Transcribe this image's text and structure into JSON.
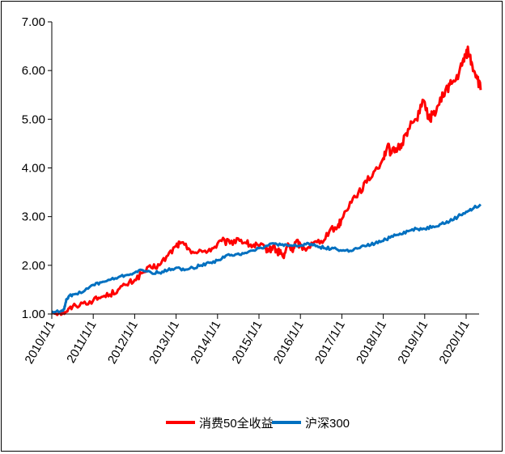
{
  "chart_data": {
    "type": "line",
    "title": "",
    "xlabel": "",
    "ylabel": "",
    "ylim": [
      1.0,
      7.0
    ],
    "yticks": [
      "1.00",
      "2.00",
      "3.00",
      "4.00",
      "5.00",
      "6.00",
      "7.00"
    ],
    "xticks": [
      "2010/1/1",
      "2011/1/1",
      "2012/1/1",
      "2013/1/1",
      "2014/1/1",
      "2015/1/1",
      "2016/1/1",
      "2017/1/1",
      "2018/1/1",
      "2019/1/1",
      "2020/1/1"
    ],
    "xrange": [
      2010.0,
      2020.35
    ],
    "grid": false,
    "legend_position": "bottom",
    "series": [
      {
        "name": "消费50全收益",
        "color": "#ff0000",
        "x": [
          2010.0,
          2010.2,
          2010.35,
          2010.5,
          2010.75,
          2011.0,
          2011.2,
          2011.4,
          2011.6,
          2011.8,
          2012.0,
          2012.2,
          2012.4,
          2012.6,
          2012.8,
          2013.0,
          2013.1,
          2013.3,
          2013.5,
          2013.7,
          2013.9,
          2014.1,
          2014.3,
          2014.5,
          2014.7,
          2014.85,
          2015.0,
          2015.15,
          2015.25,
          2015.35,
          2015.45,
          2015.5,
          2015.6,
          2015.7,
          2015.8,
          2015.9,
          2016.0,
          2016.1,
          2016.3,
          2016.5,
          2016.7,
          2016.9,
          2017.0,
          2017.2,
          2017.4,
          2017.6,
          2017.8,
          2018.0,
          2018.1,
          2018.2,
          2018.35,
          2018.45,
          2018.6,
          2018.8,
          2018.95,
          2019.1,
          2019.2,
          2019.35,
          2019.5,
          2019.6,
          2019.75,
          2019.9,
          2020.0,
          2020.05,
          2020.15,
          2020.25,
          2020.35
        ],
        "y": [
          1.05,
          1.02,
          1.05,
          1.15,
          1.22,
          1.28,
          1.35,
          1.4,
          1.5,
          1.6,
          1.7,
          1.85,
          1.95,
          2.0,
          2.2,
          2.4,
          2.45,
          2.35,
          2.25,
          2.3,
          2.35,
          2.5,
          2.45,
          2.55,
          2.45,
          2.4,
          2.4,
          2.35,
          2.3,
          2.4,
          2.25,
          2.3,
          2.15,
          2.45,
          2.3,
          2.5,
          2.4,
          2.35,
          2.45,
          2.5,
          2.7,
          2.8,
          2.95,
          3.3,
          3.5,
          3.7,
          3.95,
          4.2,
          4.45,
          4.3,
          4.4,
          4.5,
          4.8,
          5.0,
          5.4,
          5.0,
          5.1,
          5.3,
          5.6,
          5.7,
          5.8,
          6.1,
          6.35,
          6.4,
          6.1,
          5.9,
          5.6
        ]
      },
      {
        "name": "沪深300",
        "color": "#0070c0",
        "x": [
          2010.0,
          2010.2,
          2010.3,
          2010.35,
          2010.4,
          2010.5,
          2010.75,
          2011.0,
          2011.2,
          2011.4,
          2011.6,
          2011.8,
          2012.0,
          2012.2,
          2012.4,
          2012.6,
          2012.8,
          2013.0,
          2013.2,
          2013.4,
          2013.6,
          2013.8,
          2014.0,
          2014.2,
          2014.4,
          2014.6,
          2014.8,
          2015.0,
          2015.2,
          2015.4,
          2015.6,
          2015.8,
          2016.0,
          2016.2,
          2016.4,
          2016.6,
          2016.8,
          2017.0,
          2017.2,
          2017.4,
          2017.6,
          2017.8,
          2018.0,
          2018.2,
          2018.4,
          2018.6,
          2018.8,
          2019.0,
          2019.2,
          2019.4,
          2019.6,
          2019.8,
          2020.0,
          2020.15,
          2020.35
        ],
        "y": [
          1.05,
          1.05,
          1.1,
          1.3,
          1.35,
          1.4,
          1.45,
          1.6,
          1.65,
          1.7,
          1.75,
          1.8,
          1.85,
          1.9,
          1.85,
          1.85,
          1.9,
          1.95,
          1.9,
          1.95,
          2.0,
          2.05,
          2.1,
          2.2,
          2.2,
          2.25,
          2.3,
          2.35,
          2.4,
          2.45,
          2.4,
          2.4,
          2.4,
          2.45,
          2.4,
          2.35,
          2.35,
          2.3,
          2.3,
          2.35,
          2.4,
          2.45,
          2.5,
          2.6,
          2.65,
          2.7,
          2.75,
          2.75,
          2.8,
          2.85,
          2.9,
          3.0,
          3.1,
          3.15,
          3.25
        ]
      }
    ]
  }
}
